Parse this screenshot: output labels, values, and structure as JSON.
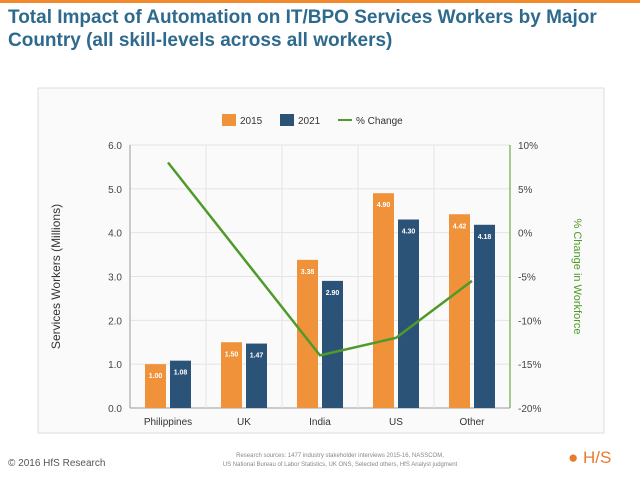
{
  "chart_data": {
    "type": "bar",
    "title": "Total Impact of Automation on IT/BPO Services Workers by Major Country (all skill-levels across all workers)",
    "categories": [
      "Philippines",
      "UK",
      "India",
      "US",
      "Other"
    ],
    "series": [
      {
        "name": "2015",
        "values": [
          1.0,
          1.5,
          3.38,
          4.9,
          4.42
        ],
        "labels": [
          "1.00",
          "1.50",
          "3.38",
          "4.90",
          "4.42"
        ],
        "color": "#f0923a"
      },
      {
        "name": "2021",
        "values": [
          1.08,
          1.47,
          2.9,
          4.3,
          4.18
        ],
        "labels": [
          "1.08",
          "1.47",
          "2.90",
          "4.30",
          "4.18"
        ],
        "color": "#2b5377"
      },
      {
        "name": "% Change",
        "type": "line",
        "axis": "right",
        "values": [
          8,
          -3,
          -14,
          -12,
          -5.5
        ],
        "color": "#4f9a2a"
      }
    ],
    "ylabel": "Services Workers (Millions)",
    "ylim": [
      0,
      6
    ],
    "yticks": [
      "0.0",
      "1.0",
      "2.0",
      "3.0",
      "4.0",
      "5.0",
      "6.0"
    ],
    "y2label": "% Change in Workforce",
    "y2lim": [
      -20,
      10
    ],
    "y2ticks": [
      "-20%",
      "-15%",
      "-10%",
      "-5%",
      "0%",
      "5%",
      "10%"
    ],
    "legend": "top",
    "grid": true
  },
  "footer": {
    "copyright": "© 2016 HfS Research",
    "source1": "Research sources: 1477 industry stakeholder interviews 2015-16, NASSCOM,",
    "source2": "US National Bureau of Labor Statistics, UK ONS, Selected others, HfS Analyst judgment",
    "logo": "H/S"
  }
}
